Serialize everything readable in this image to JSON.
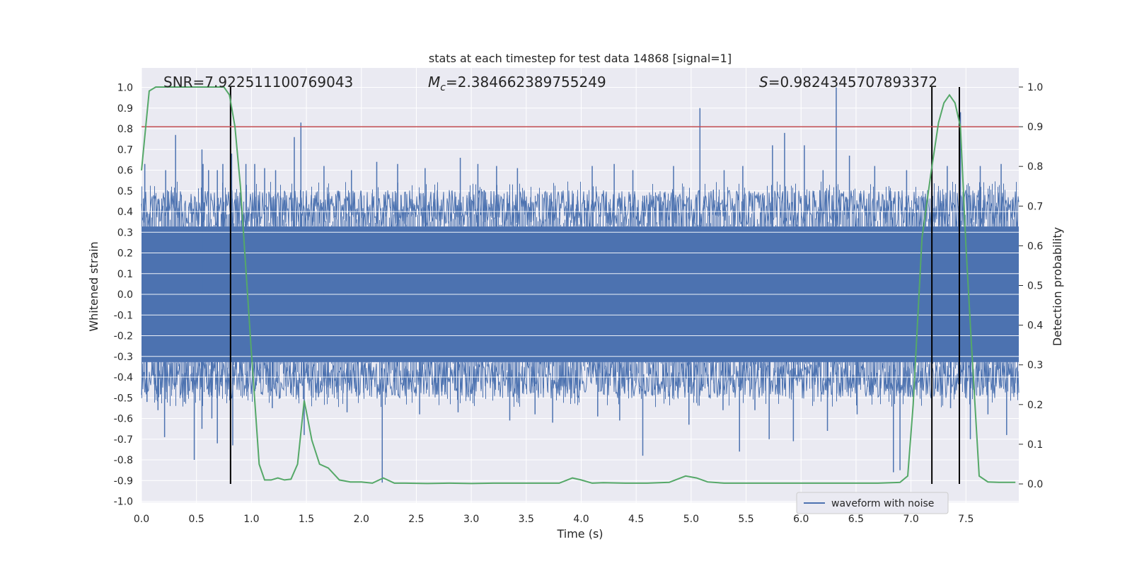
{
  "chart_data": {
    "type": "line",
    "title": "stats at each timestep for test data 14868 [signal=1]",
    "xlabel": "Time (s)",
    "ylabel": "Whitened strain",
    "y2label": "Detection probability",
    "xlim": [
      0.0,
      8.0
    ],
    "ylim": [
      -1.0,
      1.1
    ],
    "y2lim": [
      -0.04,
      1.04
    ],
    "xticks": [
      "0.0",
      "0.5",
      "1.0",
      "1.5",
      "2.0",
      "2.5",
      "3.0",
      "3.5",
      "4.0",
      "4.5",
      "5.0",
      "5.5",
      "6.0",
      "6.5",
      "7.0",
      "7.5"
    ],
    "yticks": [
      "-1.0",
      "-0.9",
      "-0.8",
      "-0.7",
      "-0.6",
      "-0.5",
      "-0.4",
      "-0.3",
      "-0.2",
      "-0.1",
      "0.0",
      "0.1",
      "0.2",
      "0.3",
      "0.4",
      "0.5",
      "0.6",
      "0.7",
      "0.8",
      "0.9",
      "1.0"
    ],
    "y2ticks": [
      "0.0",
      "0.1",
      "0.2",
      "0.3",
      "0.4",
      "0.5",
      "0.6",
      "0.7",
      "0.8",
      "0.9",
      "1.0"
    ],
    "annotations": {
      "snr": "SNR=7.922511100769043",
      "mc_symbol": "M",
      "mc_sub": "c",
      "mc_value": "=2.384662389755249",
      "s_symbol": "S",
      "s_value": "=0.9824345707893372"
    },
    "threshold": {
      "axis": "right",
      "value": 0.9
    },
    "vertical_lines": [
      0.81,
      7.19,
      7.44
    ],
    "waveform": {
      "name": "waveform with noise",
      "color": "#4c72b0",
      "envelope_typical": 0.42,
      "spikes_up": [
        [
          0.03,
          0.63
        ],
        [
          0.22,
          0.6
        ],
        [
          0.31,
          0.77
        ],
        [
          0.55,
          0.7
        ],
        [
          0.56,
          0.63
        ],
        [
          0.61,
          0.6
        ],
        [
          0.69,
          0.6
        ],
        [
          0.74,
          0.63
        ],
        [
          0.82,
          0.68
        ],
        [
          0.95,
          0.63
        ],
        [
          1.03,
          0.63
        ],
        [
          1.12,
          0.61
        ],
        [
          1.22,
          0.6
        ],
        [
          1.39,
          0.76
        ],
        [
          1.45,
          0.83
        ],
        [
          1.66,
          0.62
        ],
        [
          1.91,
          0.6
        ],
        [
          2.14,
          0.64
        ],
        [
          2.33,
          0.63
        ],
        [
          2.58,
          0.61
        ],
        [
          2.9,
          0.66
        ],
        [
          3.06,
          0.63
        ],
        [
          3.23,
          0.62
        ],
        [
          3.42,
          0.61
        ],
        [
          4.1,
          0.62
        ],
        [
          4.3,
          0.63
        ],
        [
          4.47,
          0.6
        ],
        [
          4.84,
          0.62
        ],
        [
          5.08,
          0.9
        ],
        [
          5.3,
          0.6
        ],
        [
          5.47,
          0.62
        ],
        [
          5.74,
          0.72
        ],
        [
          5.85,
          0.78
        ],
        [
          6.03,
          0.72
        ],
        [
          6.2,
          0.6
        ],
        [
          6.32,
          1.0
        ],
        [
          6.44,
          0.67
        ],
        [
          6.67,
          0.62
        ],
        [
          6.96,
          0.6
        ],
        [
          7.33,
          0.62
        ],
        [
          7.45,
          0.88
        ],
        [
          7.63,
          0.62
        ],
        [
          7.82,
          0.63
        ]
      ],
      "spikes_down": [
        [
          0.05,
          -0.52
        ],
        [
          0.15,
          -0.56
        ],
        [
          0.21,
          -0.69
        ],
        [
          0.39,
          -0.52
        ],
        [
          0.48,
          -0.8
        ],
        [
          0.55,
          -0.65
        ],
        [
          0.64,
          -0.6
        ],
        [
          0.69,
          -0.72
        ],
        [
          0.83,
          -0.73
        ],
        [
          1.19,
          -0.55
        ],
        [
          1.48,
          -0.68
        ],
        [
          1.87,
          -0.57
        ],
        [
          2.19,
          -0.91
        ],
        [
          2.53,
          -0.58
        ],
        [
          2.88,
          -0.57
        ],
        [
          3.35,
          -0.61
        ],
        [
          3.58,
          -0.58
        ],
        [
          3.74,
          -0.62
        ],
        [
          4.15,
          -0.59
        ],
        [
          4.35,
          -0.61
        ],
        [
          4.56,
          -0.78
        ],
        [
          4.98,
          -0.63
        ],
        [
          5.29,
          -0.56
        ],
        [
          5.44,
          -0.76
        ],
        [
          5.58,
          -0.56
        ],
        [
          5.71,
          -0.7
        ],
        [
          5.93,
          -0.71
        ],
        [
          6.24,
          -0.66
        ],
        [
          6.51,
          -0.58
        ],
        [
          6.84,
          -0.86
        ],
        [
          6.9,
          -0.85
        ],
        [
          7.36,
          -0.55
        ],
        [
          7.54,
          -0.7
        ],
        [
          7.7,
          -0.58
        ],
        [
          7.87,
          -0.68
        ]
      ]
    },
    "probability": {
      "color": "#55a868",
      "x": [
        0.0,
        0.07,
        0.13,
        0.2,
        0.3,
        0.4,
        0.5,
        0.6,
        0.7,
        0.75,
        0.8,
        0.85,
        0.9,
        1.0,
        1.07,
        1.12,
        1.18,
        1.24,
        1.3,
        1.36,
        1.42,
        1.48,
        1.55,
        1.62,
        1.7,
        1.8,
        1.9,
        2.0,
        2.1,
        2.2,
        2.3,
        2.4,
        2.6,
        2.8,
        3.0,
        3.2,
        3.4,
        3.6,
        3.8,
        3.92,
        4.0,
        4.1,
        4.2,
        4.4,
        4.6,
        4.8,
        4.95,
        5.05,
        5.15,
        5.3,
        5.5,
        5.7,
        5.9,
        6.1,
        6.3,
        6.5,
        6.7,
        6.9,
        6.97,
        7.02,
        7.1,
        7.18,
        7.25,
        7.3,
        7.35,
        7.4,
        7.45,
        7.5,
        7.55,
        7.62,
        7.7,
        7.8,
        7.95
      ],
      "y": [
        0.79,
        0.99,
        1.0,
        1.0,
        1.0,
        1.0,
        1.0,
        1.0,
        1.0,
        1.0,
        0.98,
        0.9,
        0.75,
        0.33,
        0.05,
        0.01,
        0.01,
        0.015,
        0.01,
        0.012,
        0.05,
        0.21,
        0.11,
        0.05,
        0.04,
        0.01,
        0.005,
        0.005,
        0.002,
        0.015,
        0.002,
        0.002,
        0.001,
        0.002,
        0.001,
        0.002,
        0.002,
        0.002,
        0.002,
        0.015,
        0.01,
        0.002,
        0.003,
        0.002,
        0.002,
        0.004,
        0.02,
        0.015,
        0.005,
        0.002,
        0.002,
        0.002,
        0.002,
        0.002,
        0.002,
        0.002,
        0.002,
        0.004,
        0.02,
        0.2,
        0.62,
        0.78,
        0.91,
        0.96,
        0.98,
        0.96,
        0.9,
        0.6,
        0.35,
        0.02,
        0.005,
        0.004,
        0.004
      ]
    },
    "threshold_color": "#c44e52",
    "legend": {
      "position": "bottom-right",
      "label": "waveform with noise"
    },
    "grid": true
  }
}
